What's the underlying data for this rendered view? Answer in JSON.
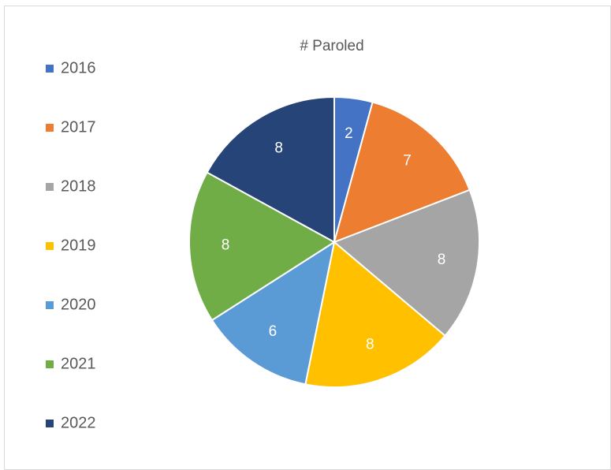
{
  "chart_data": {
    "type": "pie",
    "title": "# Paroled",
    "categories": [
      "2016",
      "2017",
      "2018",
      "2019",
      "2020",
      "2021",
      "2022"
    ],
    "values": [
      2,
      7,
      8,
      8,
      6,
      8,
      8
    ],
    "colors": [
      "#4472c4",
      "#ed7d31",
      "#a5a5a5",
      "#ffc000",
      "#5b9bd5",
      "#70ad47",
      "#264478"
    ],
    "legend": "left"
  }
}
